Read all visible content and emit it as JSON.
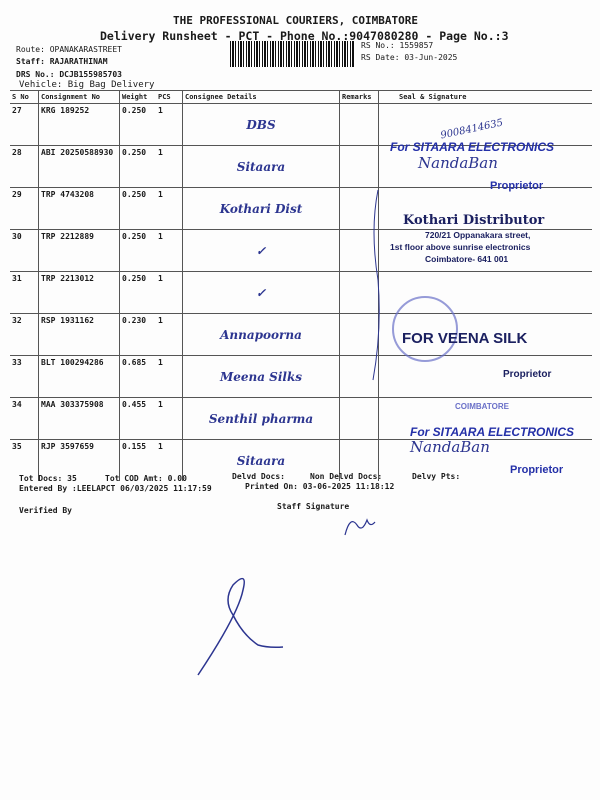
{
  "header": {
    "company": "THE PROFESSIONAL COURIERS, COIMBATORE",
    "subtitle": "Delivery Runsheet - PCT - Phone No.:9047080280 - Page No.:3",
    "route": "Route: OPANAKARASTREET",
    "staff": "Staff: RAJARATHINAM",
    "drs": "DRS No.: DCJB155985703",
    "vehicle": "Vehicle: Big Bag Delivery",
    "rs_no": "RS No.: 1559857",
    "rs_date": "RS Date: 03-Jun-2025"
  },
  "table": {
    "columns": [
      "S No",
      "Consignment No",
      "Weight",
      "PCS",
      "Consignee Details",
      "Remarks",
      "Seal & Signature"
    ],
    "rows": [
      {
        "sno": "27",
        "cn": "KRG 189252",
        "weight": "0.250",
        "pcs": "1",
        "consignee": "DBS",
        "seal": "9008414635"
      },
      {
        "sno": "28",
        "cn": "ABI 20250588930",
        "weight": "0.250",
        "pcs": "1",
        "consignee": "Sitaara",
        "seal": "For SITAARA ELECTRONICS"
      },
      {
        "sno": "29",
        "cn": "TRP 4743208",
        "weight": "0.250",
        "pcs": "1",
        "consignee": "Kothari Dist",
        "seal": "Proprietor"
      },
      {
        "sno": "30",
        "cn": "TRP 2212889",
        "weight": "0.250",
        "pcs": "1",
        "consignee": "✓",
        "seal": "Kothari Distributor"
      },
      {
        "sno": "31",
        "cn": "TRP 2213012",
        "weight": "0.250",
        "pcs": "1",
        "consignee": "✓",
        "seal": "Coimbatore- 641 001"
      },
      {
        "sno": "32",
        "cn": "RSP 1931162",
        "weight": "0.230",
        "pcs": "1",
        "consignee": "Annapoorna",
        "seal": ""
      },
      {
        "sno": "33",
        "cn": "BLT 100294286",
        "weight": "0.685",
        "pcs": "1",
        "consignee": "Meena Silks",
        "seal": "FOR VEENA SILK"
      },
      {
        "sno": "34",
        "cn": "MAA 303375908",
        "weight": "0.455",
        "pcs": "1",
        "consignee": "Senthil pharma",
        "seal": "Proprietor"
      },
      {
        "sno": "35",
        "cn": "RJP 3597659",
        "weight": "0.155",
        "pcs": "1",
        "consignee": "Sitaara",
        "seal": "For SITAARA ELECTRONICS"
      }
    ]
  },
  "stamps": {
    "kothari_addr1": "720/21 Oppanakara street,",
    "kothari_addr2": "1st floor above sunrise electronics",
    "sig_nanda": "NandaBan",
    "sig_nanda2": "NandaBan",
    "stamp_coimbatore": "COIMBATORE",
    "proprietor_bottom": "Proprietor"
  },
  "footer": {
    "tot_docs": "Tot Docs:  35",
    "tot_cod": "Tot COD Amt:    0.00",
    "delvd": "Delvd Docs:",
    "non_delvd": "Non Delvd Docs:",
    "delvy_pts": "Delvy Pts:",
    "entered_by": "Entered By :LEELAPCT 06/03/2025 11:17:59",
    "printed_on": "Printed On: 03-06-2025 11:18:12",
    "verified_by": "Verified By",
    "staff_signature": "Staff Signature"
  }
}
